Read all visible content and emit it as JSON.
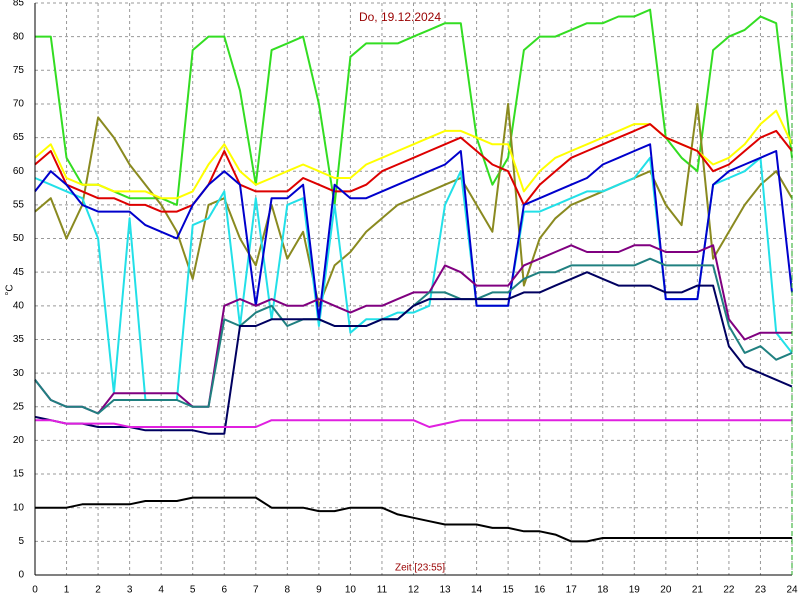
{
  "chart_data": {
    "type": "line",
    "title": "Do, 19.12.2024",
    "xlabel": "Zeit [23:55]",
    "ylabel": "°C",
    "grid": true,
    "xlim": [
      0,
      24
    ],
    "ylim": [
      0,
      85
    ],
    "xticks": [
      0,
      1,
      2,
      3,
      4,
      5,
      6,
      7,
      8,
      9,
      10,
      11,
      12,
      13,
      14,
      15,
      16,
      17,
      18,
      19,
      20,
      21,
      22,
      23,
      24
    ],
    "yticks": [
      0,
      5,
      10,
      15,
      20,
      25,
      30,
      35,
      40,
      45,
      50,
      55,
      60,
      65,
      70,
      75,
      80,
      85
    ],
    "x": [
      0,
      0.5,
      1,
      1.5,
      2,
      2.5,
      3,
      3.5,
      4,
      4.5,
      5,
      5.5,
      6,
      6.5,
      7,
      7.5,
      8,
      8.5,
      9,
      9.5,
      10,
      10.5,
      11,
      11.5,
      12,
      12.5,
      13,
      13.5,
      14,
      14.5,
      15,
      15.5,
      16,
      16.5,
      17,
      17.5,
      18,
      18.5,
      19,
      19.5,
      20,
      20.5,
      21,
      21.5,
      22,
      22.5,
      23,
      23.5,
      24
    ],
    "series": [
      {
        "color": "#33dd22",
        "values": [
          80,
          80,
          62,
          58,
          58,
          57,
          56,
          56,
          56,
          55,
          78,
          80,
          80,
          72,
          58,
          78,
          79,
          80,
          70,
          55,
          77,
          79,
          79,
          79,
          80,
          81,
          82,
          82,
          65,
          58,
          62,
          78,
          80,
          80,
          81,
          82,
          82,
          83,
          83,
          84,
          65,
          62,
          60,
          78,
          80,
          81,
          83,
          82,
          62
        ]
      },
      {
        "color": "#8a8a20",
        "values": [
          54,
          56,
          50,
          55,
          68,
          65,
          61,
          58,
          55,
          51,
          44,
          55,
          56,
          50,
          46,
          55,
          47,
          51,
          40,
          46,
          48,
          51,
          53,
          55,
          56,
          57,
          58,
          59,
          55,
          51,
          70,
          43,
          50,
          53,
          55,
          56,
          57,
          58,
          59,
          60,
          55,
          52,
          70,
          47,
          51,
          55,
          58,
          60,
          56
        ]
      },
      {
        "color": "#ffff00",
        "values": [
          62,
          64,
          59,
          58,
          58,
          57,
          57,
          57,
          56,
          56,
          57,
          61,
          64,
          60,
          58,
          59,
          60,
          61,
          60,
          59,
          59,
          61,
          62,
          63,
          64,
          65,
          66,
          66,
          65,
          64,
          64,
          57,
          60,
          62,
          63,
          64,
          65,
          66,
          67,
          67,
          65,
          64,
          63,
          61,
          62,
          64,
          67,
          69,
          64
        ]
      },
      {
        "color": "#dd0000",
        "values": [
          61,
          63,
          58,
          57,
          56,
          56,
          55,
          55,
          54,
          54,
          55,
          58,
          63,
          58,
          57,
          57,
          57,
          59,
          58,
          57,
          57,
          58,
          60,
          61,
          62,
          63,
          64,
          65,
          63,
          61,
          60,
          55,
          58,
          60,
          62,
          63,
          64,
          65,
          66,
          67,
          65,
          64,
          63,
          60,
          61,
          63,
          65,
          66,
          63
        ]
      },
      {
        "color": "#22e0e8",
        "values": [
          59,
          58,
          57,
          56,
          50,
          27,
          53,
          26,
          26,
          26,
          52,
          53,
          57,
          37,
          56,
          38,
          55,
          56,
          37,
          55,
          36,
          38,
          38,
          39,
          39,
          40,
          55,
          60,
          40,
          40,
          40,
          54,
          54,
          55,
          56,
          57,
          57,
          58,
          59,
          62,
          41,
          41,
          41,
          58,
          59,
          60,
          62,
          36,
          33
        ]
      },
      {
        "color": "#0000cc",
        "values": [
          57,
          60,
          58,
          55,
          54,
          54,
          54,
          52,
          51,
          50,
          55,
          58,
          60,
          58,
          40,
          56,
          56,
          58,
          38,
          58,
          56,
          56,
          57,
          58,
          59,
          60,
          61,
          63,
          40,
          40,
          40,
          55,
          56,
          57,
          58,
          59,
          61,
          62,
          63,
          64,
          41,
          41,
          41,
          58,
          60,
          61,
          62,
          63,
          42
        ]
      },
      {
        "color": "#800080",
        "values": [
          29,
          26,
          25,
          25,
          24,
          27,
          27,
          27,
          27,
          27,
          25,
          25,
          40,
          41,
          40,
          41,
          40,
          40,
          41,
          40,
          39,
          40,
          40,
          41,
          42,
          42,
          46,
          45,
          43,
          43,
          43,
          46,
          47,
          48,
          49,
          48,
          48,
          48,
          49,
          49,
          48,
          48,
          48,
          49,
          38,
          35,
          36,
          36,
          36
        ]
      },
      {
        "color": "#208080",
        "values": [
          29,
          26,
          25,
          25,
          24,
          26,
          26,
          26,
          26,
          26,
          25,
          25,
          38,
          37,
          39,
          40,
          37,
          38,
          38,
          37,
          37,
          37,
          38,
          38,
          40,
          42,
          42,
          41,
          41,
          42,
          42,
          44,
          45,
          45,
          46,
          46,
          46,
          46,
          46,
          47,
          46,
          46,
          46,
          46,
          37,
          33,
          34,
          32,
          33
        ]
      },
      {
        "color": "#000060",
        "values": [
          23.5,
          23,
          22.5,
          22.5,
          22,
          22,
          22,
          21.5,
          21.5,
          21.5,
          21.5,
          21,
          21,
          37,
          37,
          38,
          38,
          38,
          38,
          37,
          37,
          37,
          38,
          38,
          40,
          41,
          41,
          41,
          41,
          41,
          41,
          42,
          42,
          43,
          44,
          45,
          44,
          43,
          43,
          43,
          42,
          42,
          43,
          43,
          34,
          31,
          30,
          29,
          28
        ]
      },
      {
        "color": "#e020e0",
        "values": [
          23,
          23,
          22.5,
          22.5,
          22.5,
          22.5,
          22,
          22,
          22,
          22,
          22,
          22,
          22,
          22,
          22,
          23,
          23,
          23,
          23,
          23,
          23,
          23,
          23,
          23,
          23,
          22,
          22.5,
          23,
          23,
          23,
          23,
          23,
          23,
          23,
          23,
          23,
          23,
          23,
          23,
          23,
          23,
          23,
          23,
          23,
          23,
          23,
          23,
          23,
          23
        ]
      },
      {
        "color": "#000000",
        "values": [
          10,
          10,
          10,
          10.5,
          10.5,
          10.5,
          10.5,
          11,
          11,
          11,
          11.5,
          11.5,
          11.5,
          11.5,
          11.5,
          10,
          10,
          10,
          9.5,
          9.5,
          10,
          10,
          10,
          9,
          8.5,
          8,
          7.5,
          7.5,
          7.5,
          7,
          7,
          6.5,
          6.5,
          6,
          5,
          5,
          5.5,
          5.5,
          5.5,
          5.5,
          5.5,
          5.5,
          5.5,
          5.5,
          5.5,
          5.5,
          5.5,
          5.5,
          5.5
        ]
      }
    ]
  }
}
